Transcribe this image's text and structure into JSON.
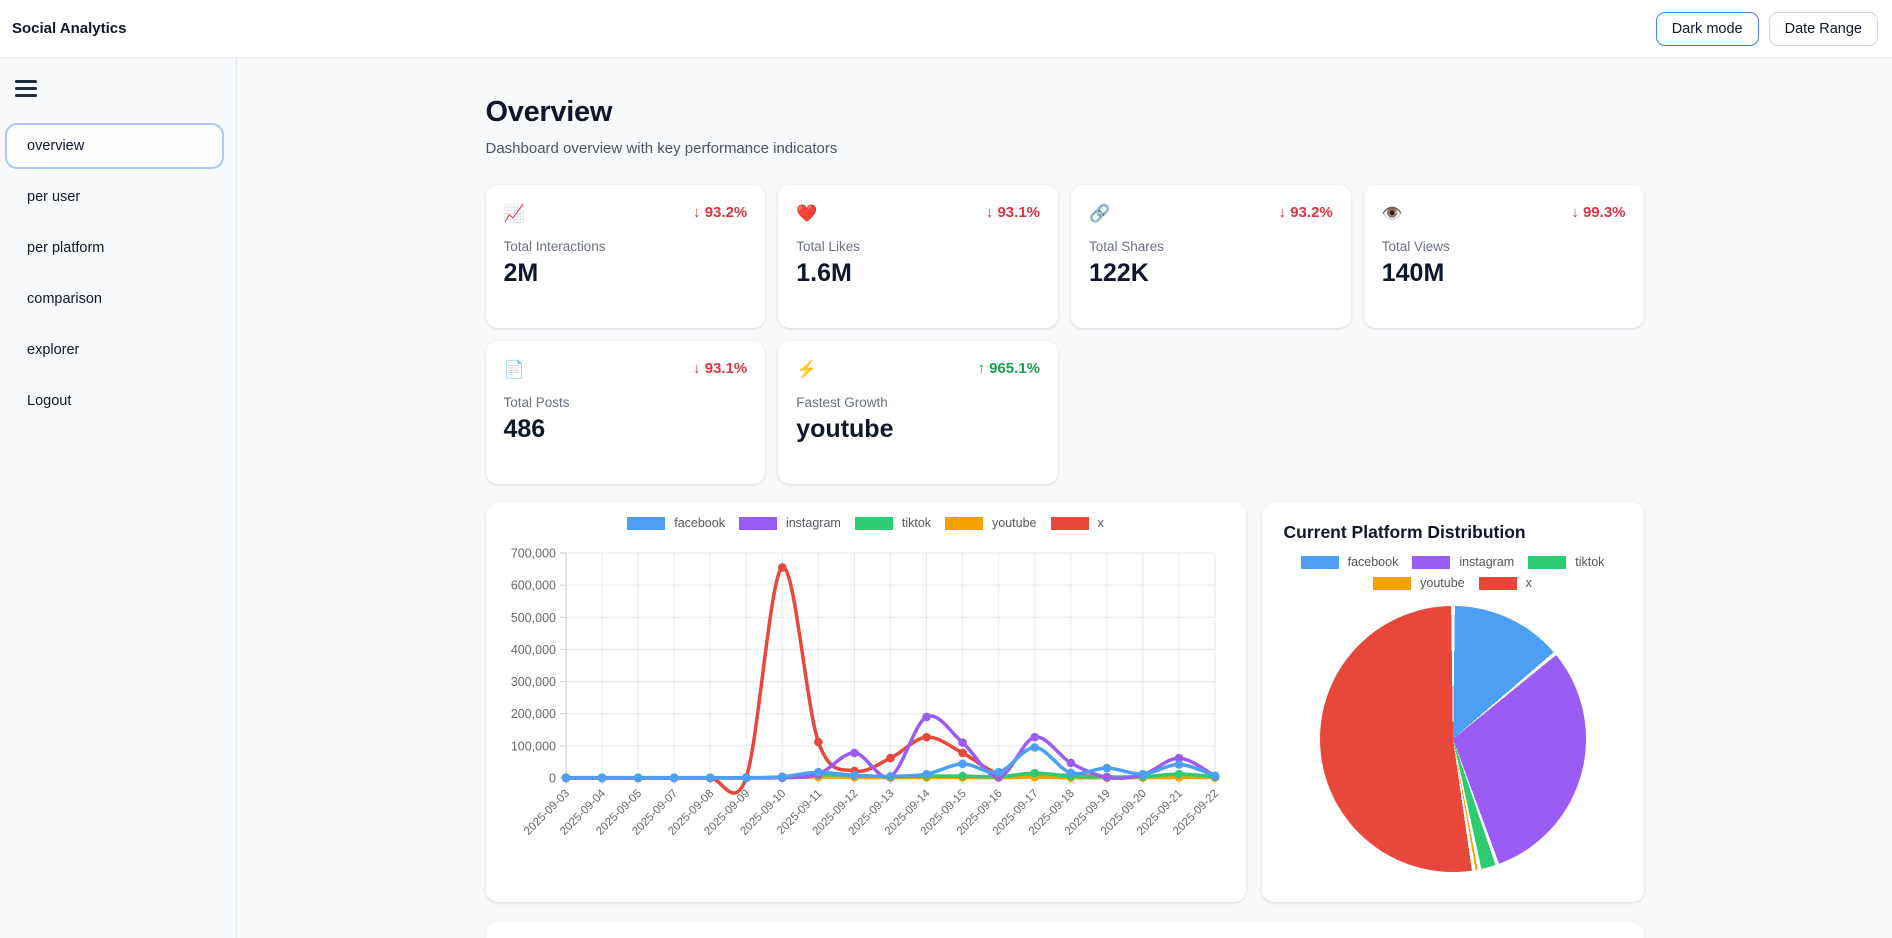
{
  "header": {
    "app_title": "Social Analytics",
    "dark_mode_label": "Dark mode",
    "date_range_label": "Date Range"
  },
  "sidebar": {
    "items": [
      {
        "label": "overview",
        "active": true
      },
      {
        "label": "per user",
        "active": false
      },
      {
        "label": "per platform",
        "active": false
      },
      {
        "label": "comparison",
        "active": false
      },
      {
        "label": "explorer",
        "active": false
      },
      {
        "label": "Logout",
        "active": false
      }
    ]
  },
  "page": {
    "title": "Overview",
    "subtitle": "Dashboard overview with key performance indicators"
  },
  "kpi_cards": [
    {
      "icon": "📈",
      "icon_name": "chart-increasing-icon",
      "delta": "↓ 93.2%",
      "direction": "down",
      "label": "Total Interactions",
      "value": "2M"
    },
    {
      "icon": "❤️",
      "icon_name": "heart-icon",
      "delta": "↓ 93.1%",
      "direction": "down",
      "label": "Total Likes",
      "value": "1.6M"
    },
    {
      "icon": "🔗",
      "icon_name": "link-icon",
      "delta": "↓ 93.2%",
      "direction": "down",
      "label": "Total Shares",
      "value": "122K"
    },
    {
      "icon": "👁️",
      "icon_name": "eye-icon",
      "delta": "↓ 99.3%",
      "direction": "down",
      "label": "Total Views",
      "value": "140M"
    },
    {
      "icon": "📄",
      "icon_name": "page-icon",
      "delta": "↓ 93.1%",
      "direction": "down",
      "label": "Total Posts",
      "value": "486"
    },
    {
      "icon": "⚡",
      "icon_name": "zap-icon",
      "delta": "↑ 965.1%",
      "direction": "up",
      "label": "Fastest Growth",
      "value": "youtube"
    }
  ],
  "colors": {
    "facebook": "#4D9FF5",
    "instagram": "#9B5CF6",
    "tiktok": "#2ECC71",
    "youtube": "#F5A100",
    "x": "#E8483C",
    "grid": "#e8eaee",
    "axis": "#caced3",
    "tick_text": "#67696d",
    "accent": "#3b82f6",
    "delta_down": "#dc3545",
    "delta_up": "#16a34a"
  },
  "chart_data": [
    {
      "type": "line",
      "title": "",
      "legend_position": "top",
      "grid": true,
      "point_style": "circle",
      "ylim": [
        0,
        700000
      ],
      "ytick_step": 100000,
      "x": [
        "2025-09-03",
        "2025-09-04",
        "2025-09-05",
        "2025-09-07",
        "2025-09-08",
        "2025-09-09",
        "2025-09-10",
        "2025-09-11",
        "2025-09-12",
        "2025-09-13",
        "2025-09-14",
        "2025-09-15",
        "2025-09-16",
        "2025-09-17",
        "2025-09-18",
        "2025-09-19",
        "2025-09-20",
        "2025-09-21",
        "2025-09-22"
      ],
      "series": [
        {
          "name": "facebook",
          "color_key": "facebook",
          "values": [
            1000,
            1000,
            1000,
            1000,
            1000,
            1000,
            4000,
            18000,
            8000,
            5000,
            12000,
            44000,
            18000,
            95000,
            16000,
            31000,
            12000,
            42000,
            7000
          ]
        },
        {
          "name": "instagram",
          "color_key": "instagram",
          "values": [
            0,
            0,
            0,
            0,
            0,
            0,
            1000,
            12000,
            78000,
            5000,
            190000,
            110000,
            3000,
            127000,
            47000,
            2000,
            10000,
            62000,
            6000
          ]
        },
        {
          "name": "tiktok",
          "color_key": "tiktok",
          "values": [
            500,
            500,
            500,
            500,
            500,
            500,
            2000,
            10000,
            8000,
            4000,
            6000,
            6000,
            4000,
            15000,
            6000,
            3000,
            4000,
            12000,
            4000
          ]
        },
        {
          "name": "youtube",
          "color_key": "youtube",
          "values": [
            200,
            200,
            200,
            200,
            200,
            200,
            1000,
            3000,
            2000,
            1000,
            2000,
            2000,
            1000,
            3000,
            1000,
            1000,
            1000,
            2000,
            1000
          ]
        },
        {
          "name": "x",
          "color_key": "x",
          "values": [
            0,
            0,
            0,
            0,
            0,
            2000,
            655000,
            112000,
            22000,
            62000,
            127000,
            78000,
            12000,
            4000,
            9000,
            3000,
            4000,
            9000,
            5000
          ]
        }
      ]
    },
    {
      "type": "pie",
      "title": "Current Platform Distribution",
      "legend_position": "top",
      "labels": [
        "facebook",
        "instagram",
        "tiktok",
        "youtube",
        "x"
      ],
      "color_keys": [
        "facebook",
        "instagram",
        "tiktok",
        "youtube",
        "x"
      ],
      "values_percent": [
        13.9,
        30.7,
        2.2,
        0.7,
        52.5
      ]
    }
  ]
}
